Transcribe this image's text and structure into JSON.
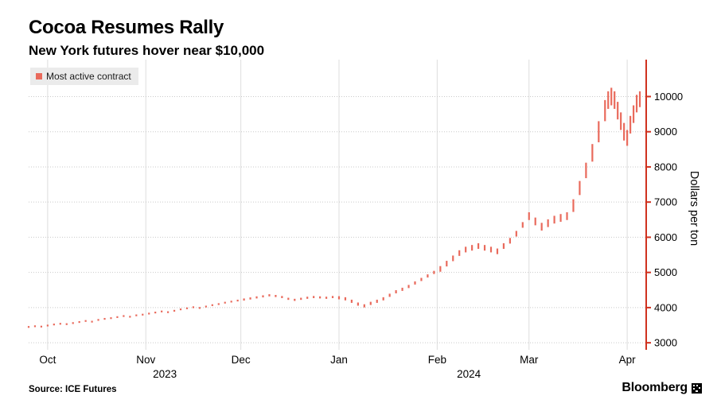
{
  "header": {
    "title": "Cocoa Resumes Rally",
    "subtitle": "New York futures hover near $10,000"
  },
  "legend": {
    "label": "Most active contract"
  },
  "footer": {
    "source": "Source: ICE Futures",
    "brand": "Bloomberg"
  },
  "chart_data": {
    "type": "ohlc-bar",
    "title": "Cocoa Resumes Rally",
    "subtitle": "New York futures hover near $10,000",
    "series_name": "Most active contract",
    "ylabel": "Dollars per ton",
    "ylim": [
      2800,
      11050
    ],
    "yticks": [
      3000,
      4000,
      5000,
      6000,
      7000,
      8000,
      9000,
      10000
    ],
    "x_unit": "days, day 0 ~ 2023-09-25, day 193 ~ 2024-04-05",
    "xlim": [
      0,
      195
    ],
    "months": [
      {
        "label": "Oct",
        "day": 6
      },
      {
        "label": "Nov",
        "day": 37
      },
      {
        "label": "Dec",
        "day": 67
      },
      {
        "label": "Jan",
        "day": 98
      },
      {
        "label": "Feb",
        "day": 129
      },
      {
        "label": "Mar",
        "day": 158
      },
      {
        "label": "Apr",
        "day": 189
      }
    ],
    "years": [
      {
        "label": "2023",
        "day": 43
      },
      {
        "label": "2024",
        "day": 139
      }
    ],
    "bars_format": "[day, low, high] in USD per ton (values estimated from gridlines)",
    "bars": [
      [
        0,
        3425,
        3475
      ],
      [
        2,
        3445,
        3495
      ],
      [
        4,
        3435,
        3485
      ],
      [
        6,
        3465,
        3515
      ],
      [
        8,
        3495,
        3545
      ],
      [
        10,
        3515,
        3565
      ],
      [
        12,
        3505,
        3555
      ],
      [
        14,
        3535,
        3585
      ],
      [
        16,
        3565,
        3615
      ],
      [
        18,
        3595,
        3645
      ],
      [
        20,
        3575,
        3625
      ],
      [
        22,
        3625,
        3675
      ],
      [
        24,
        3655,
        3705
      ],
      [
        26,
        3675,
        3725
      ],
      [
        28,
        3705,
        3755
      ],
      [
        30,
        3735,
        3785
      ],
      [
        32,
        3715,
        3765
      ],
      [
        34,
        3755,
        3805
      ],
      [
        36,
        3775,
        3825
      ],
      [
        38,
        3805,
        3855
      ],
      [
        40,
        3835,
        3885
      ],
      [
        42,
        3865,
        3915
      ],
      [
        44,
        3845,
        3895
      ],
      [
        46,
        3885,
        3935
      ],
      [
        48,
        3925,
        3975
      ],
      [
        50,
        3955,
        4005
      ],
      [
        52,
        3985,
        4035
      ],
      [
        54,
        3965,
        4015
      ],
      [
        56,
        4005,
        4055
      ],
      [
        58,
        4045,
        4095
      ],
      [
        60,
        4075,
        4125
      ],
      [
        62,
        4115,
        4165
      ],
      [
        64,
        4145,
        4195
      ],
      [
        66,
        4175,
        4225
      ],
      [
        68,
        4200,
        4260
      ],
      [
        70,
        4230,
        4290
      ],
      [
        72,
        4260,
        4320
      ],
      [
        74,
        4290,
        4350
      ],
      [
        76,
        4320,
        4380
      ],
      [
        78,
        4300,
        4360
      ],
      [
        80,
        4270,
        4330
      ],
      [
        82,
        4220,
        4280
      ],
      [
        84,
        4190,
        4250
      ],
      [
        86,
        4220,
        4280
      ],
      [
        88,
        4250,
        4310
      ],
      [
        90,
        4270,
        4330
      ],
      [
        92,
        4260,
        4320
      ],
      [
        94,
        4250,
        4310
      ],
      [
        96,
        4270,
        4330
      ],
      [
        98,
        4235,
        4325
      ],
      [
        100,
        4205,
        4295
      ],
      [
        102,
        4135,
        4225
      ],
      [
        104,
        4055,
        4145
      ],
      [
        106,
        4005,
        4095
      ],
      [
        108,
        4075,
        4165
      ],
      [
        110,
        4135,
        4225
      ],
      [
        112,
        4205,
        4295
      ],
      [
        114,
        4305,
        4395
      ],
      [
        116,
        4405,
        4495
      ],
      [
        118,
        4475,
        4565
      ],
      [
        120,
        4555,
        4645
      ],
      [
        122,
        4655,
        4745
      ],
      [
        124,
        4755,
        4845
      ],
      [
        126,
        4855,
        4945
      ],
      [
        128,
        4955,
        5045
      ],
      [
        130,
        5020,
        5180
      ],
      [
        132,
        5170,
        5330
      ],
      [
        134,
        5320,
        5480
      ],
      [
        136,
        5470,
        5630
      ],
      [
        138,
        5570,
        5730
      ],
      [
        140,
        5620,
        5780
      ],
      [
        142,
        5670,
        5830
      ],
      [
        144,
        5620,
        5780
      ],
      [
        146,
        5570,
        5730
      ],
      [
        148,
        5520,
        5680
      ],
      [
        150,
        5670,
        5830
      ],
      [
        152,
        5820,
        5980
      ],
      [
        154,
        6020,
        6180
      ],
      [
        156,
        6270,
        6430
      ],
      [
        158,
        6490,
        6710
      ],
      [
        160,
        6340,
        6560
      ],
      [
        162,
        6190,
        6410
      ],
      [
        164,
        6290,
        6510
      ],
      [
        166,
        6390,
        6610
      ],
      [
        168,
        6440,
        6660
      ],
      [
        170,
        6490,
        6710
      ],
      [
        172,
        6720,
        7080
      ],
      [
        174,
        7200,
        7600
      ],
      [
        176,
        7680,
        8120
      ],
      [
        178,
        8150,
        8650
      ],
      [
        180,
        8700,
        9300
      ],
      [
        182,
        9300,
        9900
      ],
      [
        183,
        9650,
        10150
      ],
      [
        184,
        9750,
        10250
      ],
      [
        185,
        9650,
        10150
      ],
      [
        186,
        9350,
        9850
      ],
      [
        187,
        9050,
        9550
      ],
      [
        188,
        8750,
        9250
      ],
      [
        189,
        8600,
        9050
      ],
      [
        190,
        8950,
        9450
      ],
      [
        191,
        9250,
        9750
      ],
      [
        192,
        9550,
        10050
      ],
      [
        193,
        9700,
        10150
      ]
    ],
    "legend_position": "top-left",
    "grid": true,
    "colors": {
      "bar": "#e96a5c",
      "axis": "#d0321f",
      "grid_v": "#dedede",
      "grid_h": "#c9c9c9",
      "legend_bg": "#ebebeb"
    }
  }
}
